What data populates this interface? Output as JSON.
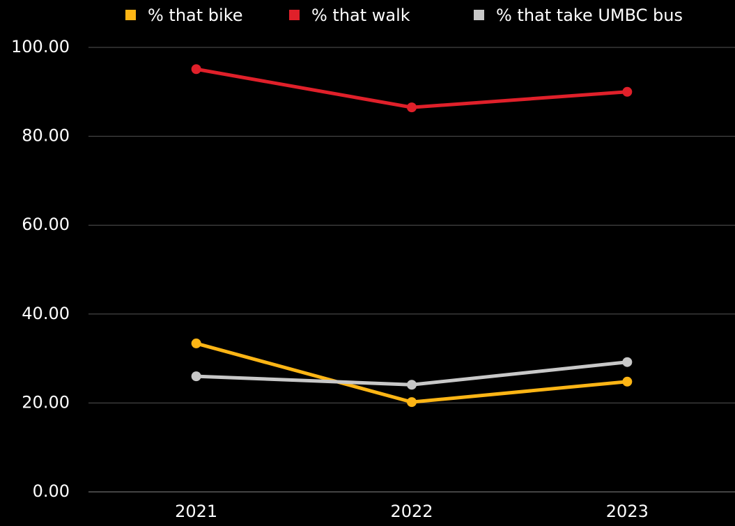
{
  "chart_data": {
    "type": "line",
    "categories": [
      "2021",
      "2022",
      "2023"
    ],
    "series": [
      {
        "name": "% that bike",
        "color": "#fdb515",
        "values": [
          33.4,
          20.2,
          24.8
        ]
      },
      {
        "name": "% that walk",
        "color": "#e0202a",
        "values": [
          95.1,
          86.5,
          90
        ]
      },
      {
        "name": "% that take UMBC bus",
        "color": "#c8c8c8",
        "values": [
          26,
          24.1,
          29.2
        ]
      }
    ],
    "ylim": [
      0,
      100
    ],
    "yticks": [
      {
        "value": 0,
        "label": "0.00"
      },
      {
        "value": 20,
        "label": "20.00"
      },
      {
        "value": 40,
        "label": "40.00"
      },
      {
        "value": 60,
        "label": "60.00"
      },
      {
        "value": 80,
        "label": "80.00"
      },
      {
        "value": 100,
        "label": "100.00"
      }
    ],
    "grid": true,
    "legend": "top"
  }
}
